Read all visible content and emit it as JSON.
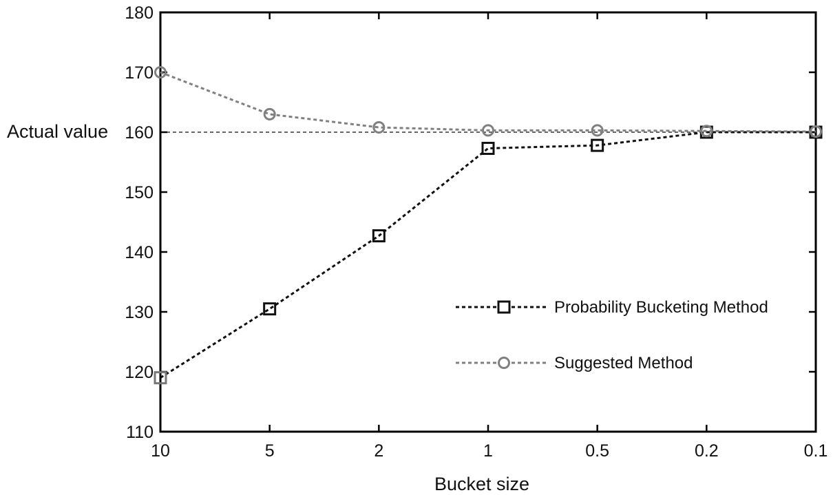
{
  "chart_data": {
    "type": "line",
    "title": "",
    "xlabel": "Bucket size",
    "ylabel": "",
    "annotation": "Actual value",
    "reference_value": 160,
    "categories": [
      "10",
      "5",
      "2",
      "1",
      "0.5",
      "0.2",
      "0.1"
    ],
    "ylim": [
      110,
      180
    ],
    "yticks": [
      110,
      120,
      130,
      140,
      150,
      160,
      170,
      180
    ],
    "grid": false,
    "legend_position": "lower-right",
    "series": [
      {
        "name": "Probability Bucketing Method",
        "values": [
          119,
          130.5,
          142.7,
          157.3,
          157.8,
          160,
          160
        ],
        "color": "#111111",
        "marker": "square",
        "linestyle": "dotted"
      },
      {
        "name": "Suggested Method",
        "values": [
          170,
          163,
          160.8,
          160.3,
          160.3,
          160.2,
          160.1
        ],
        "color": "#808080",
        "marker": "circle",
        "linestyle": "dotted"
      }
    ]
  }
}
